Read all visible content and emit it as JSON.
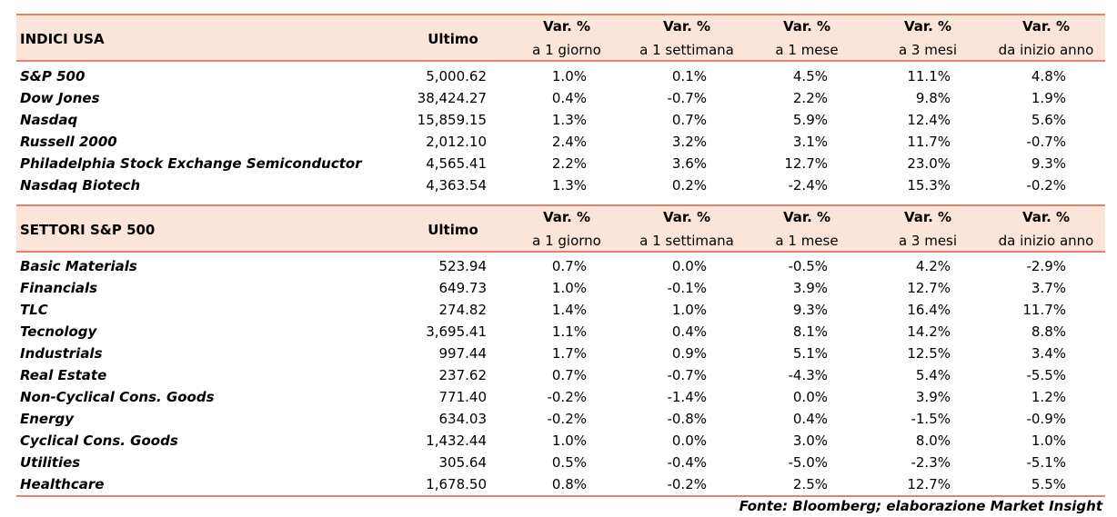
{
  "sections": [
    {
      "header": {
        "title": "INDICI USA",
        "last": "Ultimo",
        "columns": [
          {
            "top": "Var. %",
            "bottom": "a 1 giorno"
          },
          {
            "top": "Var. %",
            "bottom": "a 1 settimana"
          },
          {
            "top": "Var. %",
            "bottom": "a 1 mese"
          },
          {
            "top": "Var. %",
            "bottom": "a 3 mesi"
          },
          {
            "top": "Var. %",
            "bottom": "da inizio anno"
          }
        ]
      },
      "rows": [
        [
          "S&P 500",
          "5,000.62",
          "1.0%",
          "0.1%",
          "4.5%",
          "11.1%",
          "4.8%"
        ],
        [
          "Dow Jones",
          "38,424.27",
          "0.4%",
          "-0.7%",
          "2.2%",
          "9.8%",
          "1.9%"
        ],
        [
          "Nasdaq",
          "15,859.15",
          "1.3%",
          "0.7%",
          "5.9%",
          "12.4%",
          "5.6%"
        ],
        [
          "Russell 2000",
          "2,012.10",
          "2.4%",
          "3.2%",
          "3.1%",
          "11.7%",
          "-0.7%"
        ],
        [
          "Philadelphia Stock Exchange Semiconductor",
          "4,565.41",
          "2.2%",
          "3.6%",
          "12.7%",
          "23.0%",
          "9.3%"
        ],
        [
          "Nasdaq Biotech",
          "4,363.54",
          "1.3%",
          "0.2%",
          "-2.4%",
          "15.3%",
          "-0.2%"
        ]
      ]
    },
    {
      "header": {
        "title": "SETTORI S&P 500",
        "last": "Ultimo",
        "columns": [
          {
            "top": "Var. %",
            "bottom": "a 1 giorno"
          },
          {
            "top": "Var. %",
            "bottom": "a 1 settimana"
          },
          {
            "top": "Var. %",
            "bottom": "a 1 mese"
          },
          {
            "top": "Var. %",
            "bottom": "a 3 mesi"
          },
          {
            "top": "Var. %",
            "bottom": "da inizio anno"
          }
        ]
      },
      "rows": [
        [
          "Basic Materials",
          "523.94",
          "0.7%",
          "0.0%",
          "-0.5%",
          "4.2%",
          "-2.9%"
        ],
        [
          "Financials",
          "649.73",
          "1.0%",
          "-0.1%",
          "3.9%",
          "12.7%",
          "3.7%"
        ],
        [
          "TLC",
          "274.82",
          "1.4%",
          "1.0%",
          "9.3%",
          "16.4%",
          "11.7%"
        ],
        [
          "Tecnology",
          "3,695.41",
          "1.1%",
          "0.4%",
          "8.1%",
          "14.2%",
          "8.8%"
        ],
        [
          "Industrials",
          "997.44",
          "1.7%",
          "0.9%",
          "5.1%",
          "12.5%",
          "3.4%"
        ],
        [
          "Real Estate",
          "237.62",
          "0.7%",
          "-0.7%",
          "-4.3%",
          "5.4%",
          "-5.5%"
        ],
        [
          "Non-Cyclical Cons. Goods",
          "771.40",
          "-0.2%",
          "-1.4%",
          "0.0%",
          "3.9%",
          "1.2%"
        ],
        [
          "Energy",
          "634.03",
          "-0.2%",
          "-0.8%",
          "0.4%",
          "-1.5%",
          "-0.9%"
        ],
        [
          "Cyclical Cons. Goods",
          "1,432.44",
          "1.0%",
          "0.0%",
          "3.0%",
          "8.0%",
          "1.0%"
        ],
        [
          "Utilities",
          "305.64",
          "0.5%",
          "-0.4%",
          "-5.0%",
          "-2.3%",
          "-5.1%"
        ],
        [
          "Healthcare",
          "1,678.50",
          "0.8%",
          "-0.2%",
          "2.5%",
          "12.7%",
          "5.5%"
        ]
      ]
    }
  ],
  "source": "Fonte: Bloomberg; elaborazione Market Insight"
}
